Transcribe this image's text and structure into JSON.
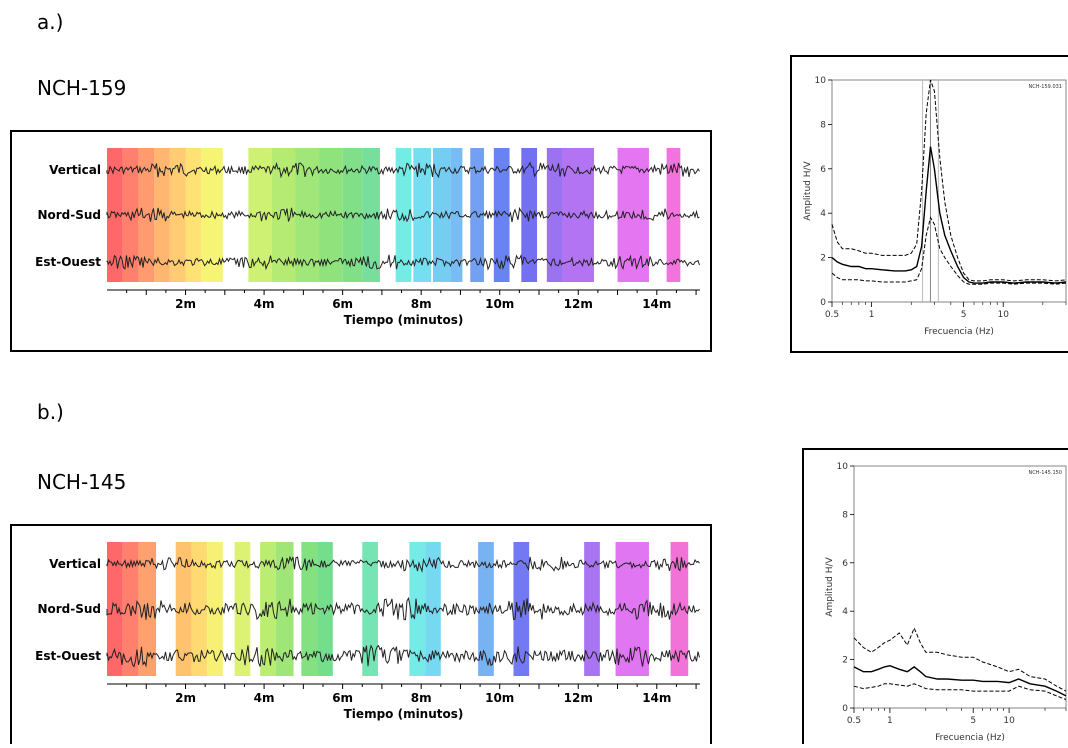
{
  "panels": [
    {
      "part_label": "a.)",
      "station": "NCH-159",
      "traces": [
        "Vertical",
        "Nord-Sud",
        "Est-Ouest"
      ],
      "time_axis": {
        "label": "Tiempo (minutos)",
        "ticks": [
          "2m",
          "4m",
          "6m",
          "8m",
          "10m",
          "12m",
          "14m"
        ],
        "tick_values": [
          2,
          4,
          6,
          8,
          10,
          12,
          14
        ],
        "range": [
          0,
          15.1
        ]
      },
      "windows": [
        {
          "start": 0.0,
          "end": 0.4,
          "color": "#ff4d4d"
        },
        {
          "start": 0.4,
          "end": 0.8,
          "color": "#ff6a52"
        },
        {
          "start": 0.8,
          "end": 1.2,
          "color": "#ff8a55"
        },
        {
          "start": 1.2,
          "end": 1.6,
          "color": "#ffa957"
        },
        {
          "start": 1.6,
          "end": 2.0,
          "color": "#ffc25a"
        },
        {
          "start": 2.0,
          "end": 2.4,
          "color": "#ffdc5c"
        },
        {
          "start": 2.4,
          "end": 2.95,
          "color": "#f3f25c"
        },
        {
          "start": 3.6,
          "end": 4.2,
          "color": "#c5ee5a"
        },
        {
          "start": 4.2,
          "end": 4.8,
          "color": "#a8e85a"
        },
        {
          "start": 4.8,
          "end": 5.4,
          "color": "#8fe260"
        },
        {
          "start": 5.4,
          "end": 6.0,
          "color": "#7cdd66"
        },
        {
          "start": 6.0,
          "end": 6.5,
          "color": "#6bdb72"
        },
        {
          "start": 6.5,
          "end": 6.95,
          "color": "#5fd98a"
        },
        {
          "start": 7.35,
          "end": 7.75,
          "color": "#5de8e0"
        },
        {
          "start": 7.8,
          "end": 8.25,
          "color": "#5dd8ee"
        },
        {
          "start": 8.3,
          "end": 8.75,
          "color": "#5dc4f0"
        },
        {
          "start": 8.75,
          "end": 9.05,
          "color": "#5fb0f0"
        },
        {
          "start": 9.25,
          "end": 9.6,
          "color": "#5b8ff0"
        },
        {
          "start": 9.85,
          "end": 10.25,
          "color": "#4f6ff0"
        },
        {
          "start": 10.55,
          "end": 10.95,
          "color": "#5a58ee"
        },
        {
          "start": 11.2,
          "end": 11.6,
          "color": "#8a5af0"
        },
        {
          "start": 11.6,
          "end": 12.4,
          "color": "#a45cf0"
        },
        {
          "start": 13.0,
          "end": 13.8,
          "color": "#e05ef0"
        },
        {
          "start": 14.25,
          "end": 14.6,
          "color": "#f05ad8"
        }
      ],
      "hv": {
        "tag": "NCH-159.031",
        "ylabel": "Amplitud H/V",
        "xlabel": "Frecuencia (Hz)",
        "yticks": [
          0,
          2,
          4,
          6,
          8,
          10
        ],
        "xticks": [
          {
            "v": 0.5,
            "label": "0.5"
          },
          {
            "v": 1,
            "label": "1"
          },
          {
            "v": 5,
            "label": "5"
          },
          {
            "v": 10,
            "label": "10"
          }
        ],
        "xlim": [
          0.5,
          30
        ],
        "ylim": [
          0,
          10
        ],
        "peak_freq": 2.8,
        "freq": [
          0.5,
          0.55,
          0.6,
          0.7,
          0.8,
          0.9,
          1,
          1.2,
          1.5,
          1.8,
          2.0,
          2.2,
          2.4,
          2.6,
          2.8,
          3.0,
          3.3,
          3.6,
          4.0,
          4.5,
          5,
          5.5,
          6,
          7,
          8,
          10,
          12,
          15,
          20,
          25,
          30
        ],
        "mean": [
          2.0,
          1.8,
          1.7,
          1.6,
          1.6,
          1.5,
          1.5,
          1.45,
          1.4,
          1.4,
          1.45,
          1.6,
          2.5,
          5.0,
          7.0,
          6.0,
          4.0,
          3.0,
          2.3,
          1.6,
          1.1,
          0.9,
          0.85,
          0.85,
          0.9,
          0.9,
          0.85,
          0.9,
          0.9,
          0.85,
          0.9
        ],
        "upper": [
          3.5,
          2.7,
          2.4,
          2.4,
          2.3,
          2.2,
          2.2,
          2.1,
          2.1,
          2.1,
          2.2,
          2.6,
          5.0,
          8.5,
          10.0,
          9.5,
          6.5,
          4.5,
          3.0,
          2.0,
          1.3,
          1.0,
          0.95,
          0.95,
          1.0,
          1.0,
          0.95,
          1.0,
          1.0,
          0.95,
          1.0
        ],
        "lower": [
          1.3,
          1.1,
          1.0,
          1.0,
          1.0,
          0.95,
          0.95,
          0.9,
          0.9,
          0.9,
          0.95,
          1.0,
          1.5,
          3.0,
          3.8,
          3.5,
          2.4,
          2.0,
          1.6,
          1.2,
          0.9,
          0.8,
          0.8,
          0.8,
          0.85,
          0.85,
          0.8,
          0.85,
          0.85,
          0.8,
          0.85
        ]
      }
    },
    {
      "part_label": "b.)",
      "station": "NCH-145",
      "traces": [
        "Vertical",
        "Nord-Sud",
        "Est-Ouest"
      ],
      "time_axis": {
        "label": "Tiempo (minutos)",
        "ticks": [
          "2m",
          "4m",
          "6m",
          "8m",
          "10m",
          "12m",
          "14m"
        ],
        "tick_values": [
          2,
          4,
          6,
          8,
          10,
          12,
          14
        ],
        "range": [
          0,
          15.1
        ]
      },
      "windows": [
        {
          "start": 0.0,
          "end": 0.4,
          "color": "#ff4d4d"
        },
        {
          "start": 0.4,
          "end": 0.8,
          "color": "#ff6a52"
        },
        {
          "start": 0.8,
          "end": 1.25,
          "color": "#ff9055"
        },
        {
          "start": 1.75,
          "end": 2.15,
          "color": "#ffb857"
        },
        {
          "start": 2.15,
          "end": 2.55,
          "color": "#ffd45b"
        },
        {
          "start": 2.55,
          "end": 2.95,
          "color": "#f4ef5c"
        },
        {
          "start": 3.25,
          "end": 3.65,
          "color": "#d6f05c"
        },
        {
          "start": 3.9,
          "end": 4.3,
          "color": "#b0ea5a"
        },
        {
          "start": 4.3,
          "end": 4.75,
          "color": "#8ee060"
        },
        {
          "start": 4.95,
          "end": 5.35,
          "color": "#6edc6a"
        },
        {
          "start": 5.35,
          "end": 5.75,
          "color": "#5cd878"
        },
        {
          "start": 6.5,
          "end": 6.9,
          "color": "#5ee0a8"
        },
        {
          "start": 7.7,
          "end": 8.1,
          "color": "#5de6e2"
        },
        {
          "start": 8.1,
          "end": 8.5,
          "color": "#5dd4ee"
        },
        {
          "start": 9.45,
          "end": 9.85,
          "color": "#5fa4f0"
        },
        {
          "start": 10.35,
          "end": 10.75,
          "color": "#5a62f0"
        },
        {
          "start": 12.15,
          "end": 12.55,
          "color": "#9a5cf0"
        },
        {
          "start": 12.95,
          "end": 13.8,
          "color": "#dc5ef0"
        },
        {
          "start": 14.35,
          "end": 14.8,
          "color": "#f05ad0"
        }
      ],
      "hv": {
        "tag": "NCH-145.150",
        "ylabel": "Amplitud H/V",
        "xlabel": "Frecuencia (Hz)",
        "yticks": [
          0,
          2,
          4,
          6,
          8,
          10
        ],
        "xticks": [
          {
            "v": 0.5,
            "label": "0.5"
          },
          {
            "v": 1,
            "label": "1"
          },
          {
            "v": 5,
            "label": "5"
          },
          {
            "v": 10,
            "label": "10"
          }
        ],
        "xlim": [
          0.5,
          30
        ],
        "ylim": [
          0,
          10
        ],
        "peak_freq": null,
        "freq": [
          0.5,
          0.6,
          0.7,
          0.8,
          0.9,
          1.0,
          1.2,
          1.4,
          1.6,
          1.8,
          2.0,
          2.5,
          3,
          4,
          5,
          6,
          8,
          10,
          12,
          15,
          20,
          25,
          30
        ],
        "mean": [
          1.7,
          1.5,
          1.5,
          1.6,
          1.7,
          1.75,
          1.6,
          1.5,
          1.7,
          1.5,
          1.3,
          1.2,
          1.2,
          1.15,
          1.15,
          1.1,
          1.1,
          1.05,
          1.2,
          1.0,
          0.9,
          0.7,
          0.5
        ],
        "upper": [
          2.9,
          2.5,
          2.3,
          2.5,
          2.7,
          2.8,
          3.1,
          2.6,
          3.3,
          2.7,
          2.3,
          2.3,
          2.2,
          2.1,
          2.1,
          1.9,
          1.7,
          1.5,
          1.6,
          1.3,
          1.2,
          0.9,
          0.7
        ],
        "lower": [
          0.9,
          0.8,
          0.85,
          0.9,
          1.0,
          1.0,
          0.95,
          0.9,
          1.0,
          0.9,
          0.8,
          0.75,
          0.75,
          0.75,
          0.7,
          0.7,
          0.7,
          0.7,
          0.9,
          0.75,
          0.7,
          0.5,
          0.35
        ]
      }
    }
  ],
  "chart_data": [
    {
      "type": "line",
      "title": "",
      "xlabel": "Frecuencia (Hz)",
      "ylabel": "Amplitud H/V",
      "xscale": "log",
      "xlim": [
        0.5,
        30
      ],
      "ylim": [
        0,
        10
      ],
      "x": [
        0.5,
        0.55,
        0.6,
        0.7,
        0.8,
        0.9,
        1,
        1.2,
        1.5,
        1.8,
        2.0,
        2.2,
        2.4,
        2.6,
        2.8,
        3.0,
        3.3,
        3.6,
        4.0,
        4.5,
        5,
        5.5,
        6,
        7,
        8,
        10,
        12,
        15,
        20,
        25,
        30
      ],
      "series": [
        {
          "values": [
            2.0,
            1.8,
            1.7,
            1.6,
            1.6,
            1.5,
            1.5,
            1.45,
            1.4,
            1.4,
            1.45,
            1.6,
            2.5,
            5.0,
            7.0,
            6.0,
            4.0,
            3.0,
            2.3,
            1.6,
            1.1,
            0.9,
            0.85,
            0.85,
            0.9,
            0.9,
            0.85,
            0.9,
            0.9,
            0.85,
            0.9
          ]
        },
        {
          "values": [
            3.5,
            2.7,
            2.4,
            2.4,
            2.3,
            2.2,
            2.2,
            2.1,
            2.1,
            2.1,
            2.2,
            2.6,
            5.0,
            8.5,
            10.0,
            9.5,
            6.5,
            4.5,
            3.0,
            2.0,
            1.3,
            1.0,
            0.95,
            0.95,
            1.0,
            1.0,
            0.95,
            1.0,
            1.0,
            0.95,
            1.0
          ]
        },
        {
          "values": [
            1.3,
            1.1,
            1.0,
            1.0,
            1.0,
            0.95,
            0.95,
            0.9,
            0.9,
            0.9,
            0.95,
            1.0,
            1.5,
            3.0,
            3.8,
            3.5,
            2.4,
            2.0,
            1.6,
            1.2,
            0.9,
            0.8,
            0.8,
            0.8,
            0.85,
            0.85,
            0.8,
            0.85,
            0.85,
            0.8,
            0.85
          ]
        }
      ]
    },
    {
      "type": "line",
      "title": "",
      "xlabel": "Frecuencia (Hz)",
      "ylabel": "Amplitud H/V",
      "xscale": "log",
      "xlim": [
        0.5,
        30
      ],
      "ylim": [
        0,
        10
      ],
      "x": [
        0.5,
        0.6,
        0.7,
        0.8,
        0.9,
        1.0,
        1.2,
        1.4,
        1.6,
        1.8,
        2.0,
        2.5,
        3,
        4,
        5,
        6,
        8,
        10,
        12,
        15,
        20,
        25,
        30
      ],
      "series": [
        {
          "values": [
            1.7,
            1.5,
            1.5,
            1.6,
            1.7,
            1.75,
            1.6,
            1.5,
            1.7,
            1.5,
            1.3,
            1.2,
            1.2,
            1.15,
            1.15,
            1.1,
            1.1,
            1.05,
            1.2,
            1.0,
            0.9,
            0.7,
            0.5
          ]
        },
        {
          "values": [
            2.9,
            2.5,
            2.3,
            2.5,
            2.7,
            2.8,
            3.1,
            2.6,
            3.3,
            2.7,
            2.3,
            2.3,
            2.2,
            2.1,
            2.1,
            1.9,
            1.7,
            1.5,
            1.6,
            1.3,
            1.2,
            0.9,
            0.7
          ]
        },
        {
          "values": [
            0.9,
            0.8,
            0.85,
            0.9,
            1.0,
            1.0,
            0.95,
            0.9,
            1.0,
            0.9,
            0.8,
            0.75,
            0.75,
            0.75,
            0.7,
            0.7,
            0.7,
            0.7,
            0.9,
            0.75,
            0.7,
            0.5,
            0.35
          ]
        }
      ]
    }
  ]
}
